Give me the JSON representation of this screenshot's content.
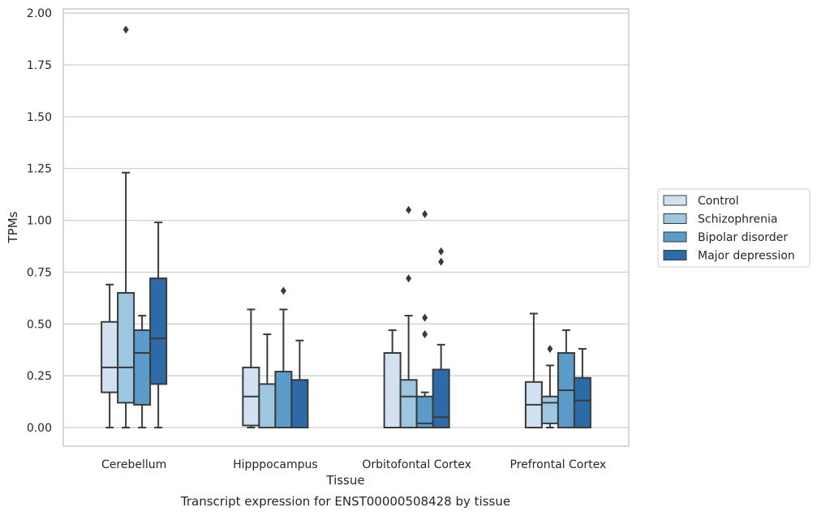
{
  "chart_data": {
    "type": "box",
    "xlabel": "Tissue",
    "ylabel": "TPMs",
    "caption": "Transcript expression for ENST00000508428 by tissue",
    "categories": [
      "Cerebellum",
      "Hipppocampus",
      "Orbitofontal Cortex",
      "Prefrontal Cortex"
    ],
    "ylim": [
      -0.09,
      2.02
    ],
    "yticks": [
      "0.00",
      "0.25",
      "0.50",
      "0.75",
      "1.00",
      "1.25",
      "1.50",
      "1.75",
      "2.00"
    ],
    "grid": "horizontal",
    "legend_position": "right",
    "series": [
      {
        "name": "Control",
        "color": "#d1e1f1",
        "boxes": [
          {
            "whislo": 0.0,
            "q1": 0.17,
            "med": 0.29,
            "q3": 0.51,
            "whishi": 0.69,
            "fliers": []
          },
          {
            "whislo": 0.0,
            "q1": 0.01,
            "med": 0.15,
            "q3": 0.29,
            "whishi": 0.57,
            "fliers": []
          },
          {
            "whislo": 0.0,
            "q1": 0.0,
            "med": 0.0,
            "q3": 0.36,
            "whishi": 0.47,
            "fliers": []
          },
          {
            "whislo": 0.0,
            "q1": 0.0,
            "med": 0.11,
            "q3": 0.22,
            "whishi": 0.55,
            "fliers": []
          }
        ]
      },
      {
        "name": "Schizophrenia",
        "color": "#9dc7e0",
        "boxes": [
          {
            "whislo": 0.0,
            "q1": 0.12,
            "med": 0.29,
            "q3": 0.65,
            "whishi": 1.23,
            "fliers": [
              1.92
            ]
          },
          {
            "whislo": 0.0,
            "q1": 0.0,
            "med": 0.0,
            "q3": 0.21,
            "whishi": 0.45,
            "fliers": []
          },
          {
            "whislo": 0.0,
            "q1": 0.0,
            "med": 0.15,
            "q3": 0.23,
            "whishi": 0.54,
            "fliers": [
              0.72,
              1.05
            ]
          },
          {
            "whislo": 0.0,
            "q1": 0.02,
            "med": 0.12,
            "q3": 0.15,
            "whishi": 0.3,
            "fliers": [
              0.38
            ]
          }
        ]
      },
      {
        "name": "Bipolar disorder",
        "color": "#5a9bc9",
        "boxes": [
          {
            "whislo": 0.0,
            "q1": 0.11,
            "med": 0.36,
            "q3": 0.47,
            "whishi": 0.54,
            "fliers": []
          },
          {
            "whislo": 0.0,
            "q1": 0.0,
            "med": 0.0,
            "q3": 0.27,
            "whishi": 0.57,
            "fliers": [
              0.66
            ]
          },
          {
            "whislo": 0.0,
            "q1": 0.0,
            "med": 0.02,
            "q3": 0.15,
            "whishi": 0.17,
            "fliers": [
              0.45,
              0.53,
              1.03
            ]
          },
          {
            "whislo": 0.0,
            "q1": 0.0,
            "med": 0.18,
            "q3": 0.36,
            "whishi": 0.47,
            "fliers": []
          }
        ]
      },
      {
        "name": "Major depression",
        "color": "#2c6aa8",
        "boxes": [
          {
            "whislo": 0.0,
            "q1": 0.21,
            "med": 0.43,
            "q3": 0.72,
            "whishi": 0.99,
            "fliers": []
          },
          {
            "whislo": 0.0,
            "q1": 0.0,
            "med": 0.0,
            "q3": 0.23,
            "whishi": 0.42,
            "fliers": []
          },
          {
            "whislo": 0.0,
            "q1": 0.0,
            "med": 0.05,
            "q3": 0.28,
            "whishi": 0.4,
            "fliers": [
              0.8,
              0.85
            ]
          },
          {
            "whislo": 0.0,
            "q1": 0.0,
            "med": 0.13,
            "q3": 0.24,
            "whishi": 0.38,
            "fliers": []
          }
        ]
      }
    ]
  }
}
